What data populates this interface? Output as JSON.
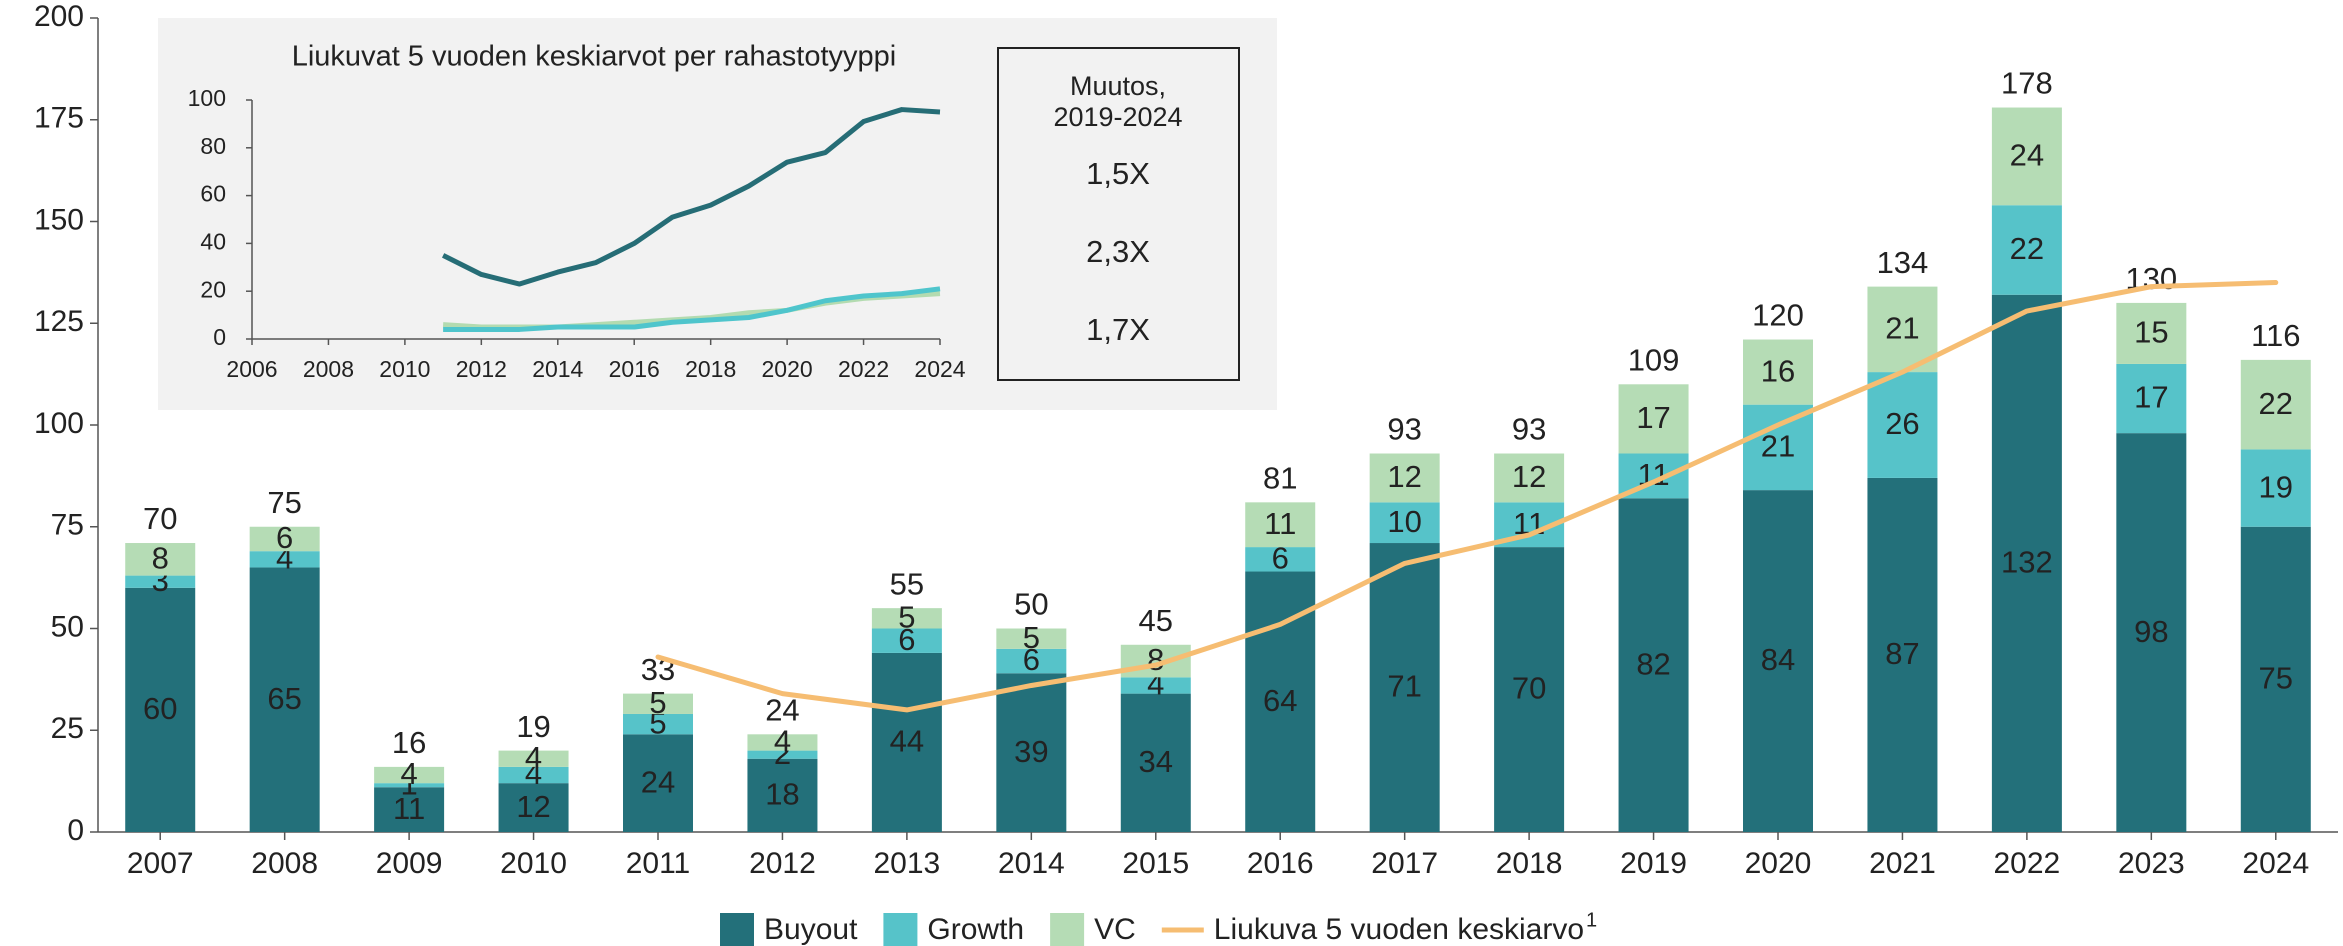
{
  "chart_data": [
    {
      "type": "bar",
      "stacked": true,
      "categories": [
        "2007",
        "2008",
        "2009",
        "2010",
        "2011",
        "2012",
        "2013",
        "2014",
        "2015",
        "2016",
        "2017",
        "2018",
        "2019",
        "2020",
        "2021",
        "2022",
        "2023",
        "2024"
      ],
      "series": [
        {
          "name": "Buyout",
          "color": "#23707a",
          "values": [
            60,
            65,
            11,
            12,
            24,
            18,
            44,
            39,
            34,
            64,
            71,
            70,
            82,
            84,
            87,
            132,
            98,
            75
          ]
        },
        {
          "name": "Growth",
          "color": "#56c3c9",
          "values": [
            3,
            4,
            1,
            4,
            5,
            2,
            6,
            6,
            4,
            6,
            10,
            11,
            11,
            21,
            26,
            22,
            17,
            19
          ]
        },
        {
          "name": "VC",
          "color": "#b5dcb5",
          "values": [
            8,
            6,
            4,
            4,
            5,
            4,
            5,
            5,
            8,
            11,
            12,
            12,
            17,
            16,
            21,
            24,
            15,
            22
          ]
        },
        {
          "name": "Liukuva 5 vuoden keskiarvo",
          "footnote": "1",
          "type": "line",
          "color": "#f6bd72",
          "values": [
            null,
            null,
            null,
            null,
            43,
            34,
            30,
            36,
            41,
            51,
            66,
            73,
            86,
            100,
            113,
            128,
            134,
            135
          ]
        }
      ],
      "totals": [
        70,
        75,
        16,
        19,
        33,
        24,
        55,
        50,
        45,
        81,
        93,
        93,
        109,
        120,
        134,
        178,
        130,
        116
      ],
      "ylim": [
        0,
        200
      ],
      "yticks": [
        0,
        25,
        50,
        75,
        100,
        125,
        150,
        175,
        200
      ],
      "legend": "bottom"
    },
    {
      "type": "line",
      "title": "Liukuvat 5 vuoden keskiarvot per rahastotyyppi",
      "x": [
        2011,
        2012,
        2013,
        2014,
        2015,
        2016,
        2017,
        2018,
        2019,
        2020,
        2021,
        2022,
        2023,
        2024
      ],
      "series": [
        {
          "name": "Buyout",
          "color": "#266d76",
          "values": [
            35,
            27,
            23,
            28,
            32,
            40,
            51,
            56,
            64,
            74,
            78,
            91,
            96,
            95
          ]
        },
        {
          "name": "Growth",
          "color": "#4fc5cc",
          "values": [
            4,
            4,
            4,
            5,
            5,
            5,
            7,
            8,
            9,
            12,
            16,
            18,
            19,
            21
          ]
        },
        {
          "name": "VC",
          "color": "#b3dbb0",
          "values": [
            6,
            5,
            5,
            5,
            6,
            7,
            8,
            9,
            11,
            12,
            15,
            17,
            18,
            19
          ]
        }
      ],
      "xlim": [
        2006,
        2024
      ],
      "xticks": [
        2006,
        2008,
        2010,
        2012,
        2014,
        2016,
        2018,
        2020,
        2022,
        2024
      ],
      "ylim": [
        0,
        100
      ],
      "yticks": [
        0,
        20,
        40,
        60,
        80,
        100
      ],
      "change_box": {
        "title": [
          "Muutos,",
          "2019-2024"
        ],
        "labels": [
          "1,5X",
          "2,3X",
          "1,7X"
        ]
      }
    }
  ]
}
